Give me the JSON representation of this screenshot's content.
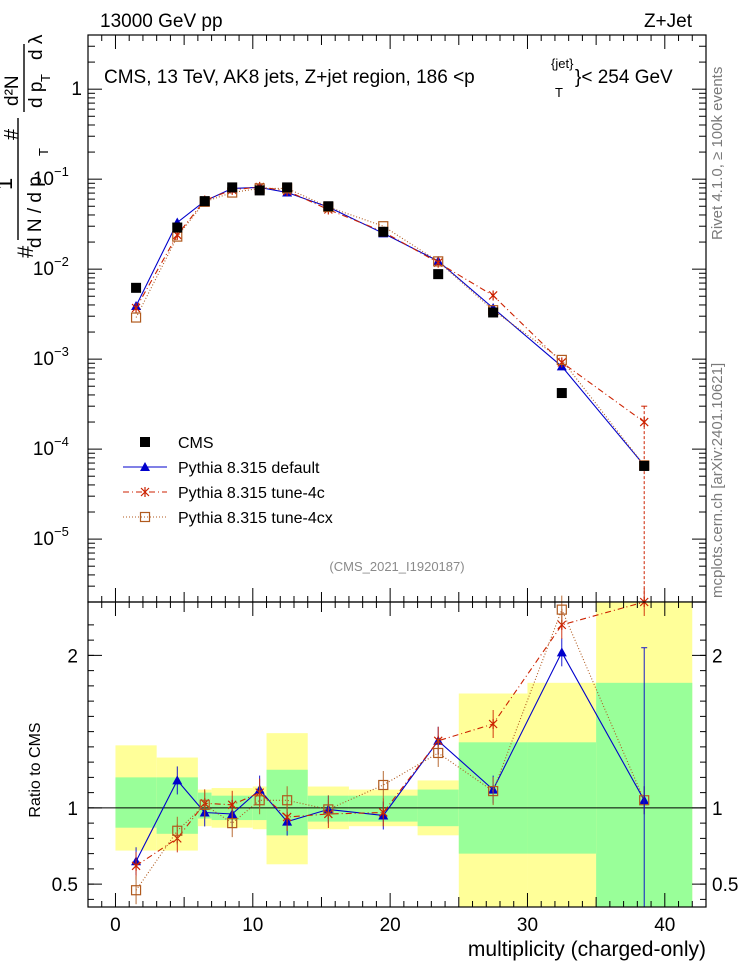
{
  "header": {
    "left": "13000 GeV pp",
    "right": "Z+Jet"
  },
  "side_labels": {
    "rivet": "Rivet 4.1.0, ≥ 100k events",
    "mcplots": "mcplots.cern.ch [arXiv:2401.10621]"
  },
  "colors": {
    "cms": "#000000",
    "default": "#0000cc",
    "tune4c": "#cc2200",
    "tune4cx": "#b05a1e",
    "band_inner": "#99ff99",
    "band_outer": "#ffff99"
  },
  "chart_data": [
    {
      "type": "scatter",
      "panel": "main",
      "title": "CMS, 13 TeV, AK8 jets, Z+jet region, 186 <p",
      "title_sup": "{jet}",
      "title_sub": "T",
      "title_tail": "}< 254 GeV",
      "ylabel": "1/(dN/dp_T) d²N/(dp_T dλ)",
      "ylabel_parts": {
        "one": "1",
        "num": "d²N",
        "den1": "d N / d p",
        "den1_sub": "T",
        "den2": "d p",
        "den2_sub": "T",
        "den2_tail": "d λ",
        "hash": "#"
      },
      "yscale": "log",
      "ylim": [
        2e-06,
        4
      ],
      "yticks": [
        {
          "v": 1e-05,
          "label": "10",
          "exp": "−5"
        },
        {
          "v": 0.0001,
          "label": "10",
          "exp": "−4"
        },
        {
          "v": 0.001,
          "label": "10",
          "exp": "−3"
        },
        {
          "v": 0.01,
          "label": "10",
          "exp": "−2"
        },
        {
          "v": 0.1,
          "label": "10",
          "exp": "−1"
        },
        {
          "v": 1,
          "label": "1",
          "exp": ""
        }
      ],
      "watermark": "(CMS_2021_I1920187)",
      "bins": [
        0,
        3,
        6,
        7,
        10,
        11,
        14,
        17,
        22,
        25,
        30,
        35,
        42
      ],
      "x": [
        1.5,
        4.5,
        6.5,
        8.5,
        10.5,
        12.5,
        15.5,
        19.5,
        23.5,
        27.5,
        32.5,
        38.5
      ],
      "series": [
        {
          "name": "CMS",
          "key": "cms",
          "values": [
            0.0062,
            0.029,
            0.057,
            0.081,
            0.075,
            0.081,
            0.05,
            0.026,
            0.0088,
            0.0033,
            0.00042,
            6.5e-05
          ]
        },
        {
          "name": "Pythia 8.315 default",
          "key": "default",
          "values": [
            0.0039,
            0.033,
            0.057,
            0.079,
            0.081,
            0.071,
            0.049,
            0.025,
            0.0123,
            0.0037,
            0.00083,
            6.6e-05
          ]
        },
        {
          "name": "Pythia 8.315 tune-4c",
          "key": "tune4c",
          "values": [
            0.0037,
            0.024,
            0.058,
            0.076,
            0.082,
            0.074,
            0.046,
            0.026,
            0.0118,
            0.0051,
            0.00092,
            0.0002
          ]
        },
        {
          "name": "Pythia 8.315 tune-4cx",
          "key": "tune4cx",
          "values": [
            0.0029,
            0.023,
            0.056,
            0.071,
            0.079,
            0.079,
            0.049,
            0.03,
            0.0122,
            0.0035,
            0.00098,
            6.6e-05
          ]
        }
      ],
      "legend_position": "lower-left"
    },
    {
      "type": "scatter",
      "panel": "ratio",
      "xlabel": "multiplicity (charged-only)",
      "ylabel": "Ratio to CMS",
      "xlim": [
        -2,
        43
      ],
      "ylim": [
        0.35,
        2.35
      ],
      "xticks": [
        0,
        10,
        20,
        30,
        40
      ],
      "yticks": [
        0.5,
        1,
        2
      ],
      "bands": {
        "inner": [
          [
            0.87,
            1.2
          ],
          [
            0.83,
            1.2
          ],
          [
            0.93,
            1.1
          ],
          [
            0.92,
            1.08
          ],
          [
            0.92,
            1.08
          ],
          [
            0.82,
            1.25
          ],
          [
            0.91,
            1.08
          ],
          [
            0.91,
            1.08
          ],
          [
            0.88,
            1.12
          ],
          [
            0.7,
            1.43
          ],
          [
            0.7,
            1.43
          ],
          [
            0.3,
            1.82
          ]
        ],
        "outer": [
          [
            0.72,
            1.41
          ],
          [
            0.72,
            1.33
          ],
          [
            0.88,
            1.12
          ],
          [
            0.87,
            1.13
          ],
          [
            0.86,
            1.14
          ],
          [
            0.63,
            1.49
          ],
          [
            0.86,
            1.14
          ],
          [
            0.88,
            1.12
          ],
          [
            0.82,
            1.18
          ],
          [
            0.3,
            1.75
          ],
          [
            0.3,
            1.82
          ],
          [
            0.3,
            2.35
          ]
        ]
      },
      "series": [
        {
          "name": "Pythia 8.315 default",
          "key": "default",
          "values": [
            0.65,
            1.18,
            0.97,
            0.96,
            1.12,
            0.91,
            0.99,
            0.95,
            1.44,
            1.12,
            2.02,
            1.05
          ]
        },
        {
          "name": "Pythia 8.315 tune-4c",
          "key": "tune4c",
          "values": [
            0.62,
            0.8,
            1.03,
            1.02,
            1.1,
            0.94,
            0.96,
            0.97,
            1.44,
            1.55,
            2.2,
            2.35
          ]
        },
        {
          "name": "Pythia 8.315 tune-4cx",
          "key": "tune4cx",
          "values": [
            0.46,
            0.85,
            1.02,
            0.9,
            1.05,
            1.05,
            0.99,
            1.15,
            1.36,
            1.11,
            2.3,
            1.05
          ]
        }
      ]
    }
  ]
}
